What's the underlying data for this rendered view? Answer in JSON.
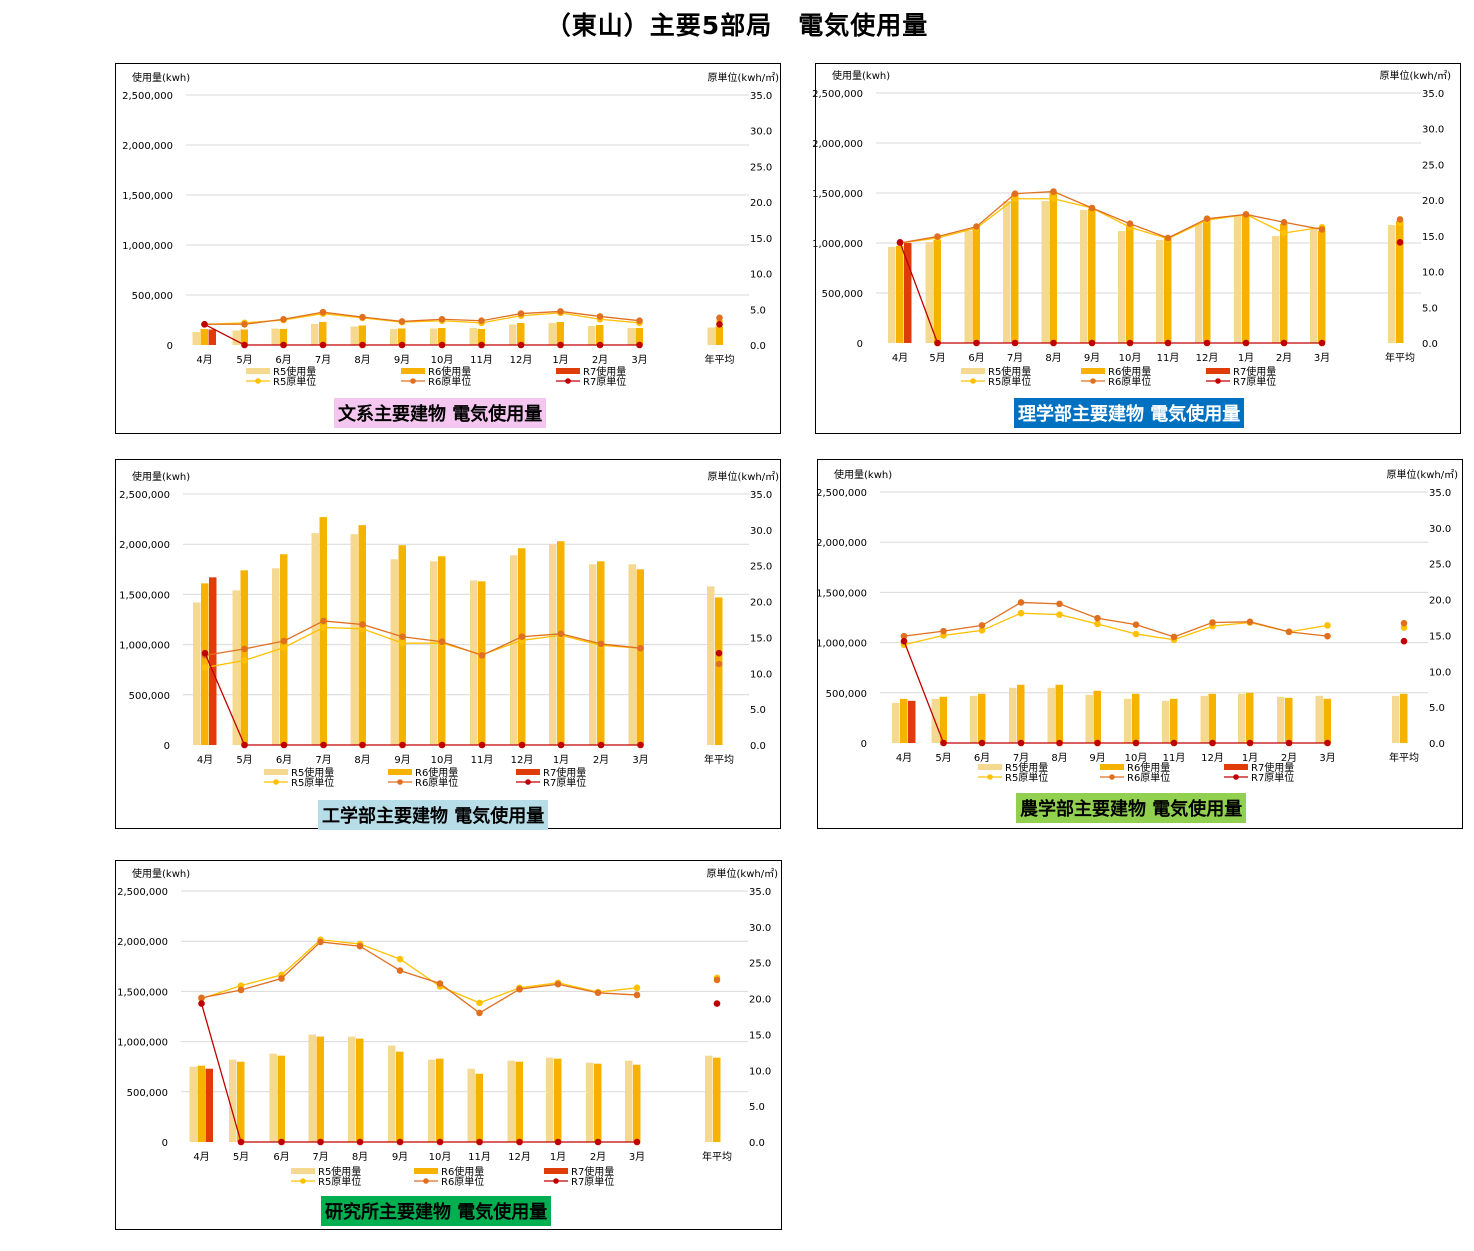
{
  "page_title": "（東山）主要5部局　電気使用量",
  "colors": {
    "r5_bar": "#F5D990",
    "r6_bar": "#F5B300",
    "r7_bar": "#E03C0A",
    "r5_line": "#FFC000",
    "r6_line": "#E07020",
    "r7_line": "#C00000",
    "grid": "#D9D9D9"
  },
  "chart_data": [
    {
      "type": "bar",
      "title": "文系主要建物  電気使用量",
      "caption_bg": "#F4C6F0",
      "caption_color": "#000000",
      "ylabel": "使用量(kwh)",
      "y2label": "原単位(kwh/㎡)",
      "categories": [
        "4月",
        "5月",
        "6月",
        "7月",
        "8月",
        "9月",
        "10月",
        "11月",
        "12月",
        "1月",
        "2月",
        "3月",
        "年平均"
      ],
      "yticks": [
        "0",
        "500,000",
        "1,000,000",
        "1,500,000",
        "2,000,000",
        "2,500,000"
      ],
      "y2ticks": [
        "0.0",
        "5.0",
        "10.0",
        "15.0",
        "20.0",
        "25.0",
        "30.0",
        "35.0"
      ],
      "ylim": [
        0,
        2500000
      ],
      "y2lim": [
        0,
        35
      ],
      "grid": true,
      "series": [
        {
          "name": "R5使用量",
          "kind": "bar",
          "values": [
            130000,
            145000,
            165000,
            210000,
            185000,
            160000,
            165000,
            170000,
            205000,
            220000,
            190000,
            170000,
            175000
          ]
        },
        {
          "name": "R6使用量",
          "kind": "bar",
          "values": [
            160000,
            155000,
            160000,
            230000,
            195000,
            165000,
            170000,
            160000,
            220000,
            230000,
            200000,
            170000,
            185000
          ]
        },
        {
          "name": "R7使用量",
          "kind": "bar",
          "values": [
            155000,
            null,
            null,
            null,
            null,
            null,
            null,
            null,
            null,
            null,
            null,
            null,
            null
          ]
        },
        {
          "name": "R5原単位",
          "kind": "line",
          "values": [
            2.9,
            3.1,
            3.5,
            4.4,
            3.8,
            3.2,
            3.4,
            3.1,
            4.1,
            4.5,
            3.6,
            3.1,
            3.3
          ]
        },
        {
          "name": "R6原単位",
          "kind": "line",
          "values": [
            2.9,
            2.9,
            3.6,
            4.6,
            3.9,
            3.3,
            3.6,
            3.4,
            4.4,
            4.7,
            4.0,
            3.4,
            3.8
          ]
        },
        {
          "name": "R7原単位",
          "kind": "line",
          "values": [
            2.9,
            0,
            0,
            0,
            0,
            0,
            0,
            0,
            0,
            0,
            0,
            0,
            2.9
          ]
        }
      ]
    },
    {
      "type": "bar",
      "title": "理学部主要建物  電気使用量",
      "caption_bg": "#0070C0",
      "caption_color": "#FFFFFF",
      "ylabel": "使用量(kwh)",
      "y2label": "原単位(kwh/㎡)",
      "categories": [
        "4月",
        "5月",
        "6月",
        "7月",
        "8月",
        "9月",
        "10月",
        "11月",
        "12月",
        "1月",
        "2月",
        "3月",
        "年平均"
      ],
      "yticks": [
        "0",
        "500,000",
        "1,000,000",
        "1,500,000",
        "2,000,000",
        "2,500,000"
      ],
      "y2ticks": [
        "0.0",
        "5.0",
        "10.0",
        "15.0",
        "20.0",
        "25.0",
        "30.0",
        "35.0"
      ],
      "ylim": [
        0,
        2500000
      ],
      "y2lim": [
        0,
        35
      ],
      "grid": true,
      "series": [
        {
          "name": "R5使用量",
          "kind": "bar",
          "values": [
            960000,
            1010000,
            1120000,
            1420000,
            1420000,
            1330000,
            1120000,
            1030000,
            1190000,
            1270000,
            1070000,
            1140000,
            1180000
          ]
        },
        {
          "name": "R6使用量",
          "kind": "bar",
          "values": [
            970000,
            1030000,
            1150000,
            1490000,
            1510000,
            1340000,
            1180000,
            1050000,
            1230000,
            1280000,
            1190000,
            1120000,
            1220000
          ]
        },
        {
          "name": "R7使用量",
          "kind": "bar",
          "values": [
            1000000,
            null,
            null,
            null,
            null,
            null,
            null,
            null,
            null,
            null,
            null,
            null,
            null
          ]
        },
        {
          "name": "R5原単位",
          "kind": "line",
          "values": [
            14.0,
            14.7,
            16.1,
            20.2,
            20.2,
            18.9,
            16.2,
            14.6,
            17.2,
            18.0,
            15.4,
            16.2,
            16.8
          ]
        },
        {
          "name": "R6原単位",
          "kind": "line",
          "values": [
            14.0,
            14.9,
            16.3,
            20.9,
            21.2,
            18.9,
            16.7,
            14.7,
            17.4,
            18.0,
            16.9,
            15.9,
            17.3
          ]
        },
        {
          "name": "R7原単位",
          "kind": "line",
          "values": [
            14.1,
            0,
            0,
            0,
            0,
            0,
            0,
            0,
            0,
            0,
            0,
            0,
            14.1
          ]
        }
      ]
    },
    {
      "type": "bar",
      "title": "工学部主要建物  電気使用量",
      "caption_bg": "#B7DEE8",
      "caption_color": "#000000",
      "ylabel": "使用量(kwh)",
      "y2label": "原単位(kwh/㎡)",
      "categories": [
        "4月",
        "5月",
        "6月",
        "7月",
        "8月",
        "9月",
        "10月",
        "11月",
        "12月",
        "1月",
        "2月",
        "3月",
        "年平均"
      ],
      "yticks": [
        "0",
        "500,000",
        "1,000,000",
        "1,500,000",
        "2,000,000",
        "2,500,000"
      ],
      "y2ticks": [
        "0.0",
        "5.0",
        "10.0",
        "15.0",
        "20.0",
        "25.0",
        "30.0",
        "35.0"
      ],
      "ylim": [
        0,
        2500000
      ],
      "y2lim": [
        0,
        35
      ],
      "grid": true,
      "series": [
        {
          "name": "R5使用量",
          "kind": "bar",
          "values": [
            1420000,
            1540000,
            1760000,
            2110000,
            2100000,
            1850000,
            1830000,
            1640000,
            1890000,
            2000000,
            1800000,
            1800000,
            1580000
          ]
        },
        {
          "name": "R6使用量",
          "kind": "bar",
          "values": [
            1610000,
            1740000,
            1900000,
            2270000,
            2190000,
            1990000,
            1880000,
            1630000,
            1960000,
            2030000,
            1830000,
            1750000,
            1470000
          ]
        },
        {
          "name": "R7使用量",
          "kind": "bar",
          "values": [
            1670000,
            null,
            null,
            null,
            null,
            null,
            null,
            null,
            null,
            null,
            null,
            null,
            null
          ]
        },
        {
          "name": "R5原単位",
          "kind": "line",
          "values": [
            10.8,
            11.8,
            13.6,
            16.4,
            16.2,
            14.2,
            14.2,
            12.6,
            14.6,
            15.3,
            13.9,
            13.5,
            11.5
          ]
        },
        {
          "name": "R6原単位",
          "kind": "line",
          "values": [
            12.5,
            13.4,
            14.5,
            17.3,
            16.8,
            15.1,
            14.4,
            12.5,
            15.1,
            15.5,
            14.1,
            13.5,
            11.3
          ]
        },
        {
          "name": "R7原単位",
          "kind": "line",
          "values": [
            12.8,
            0,
            0,
            0,
            0,
            0,
            0,
            0,
            0,
            0,
            0,
            0,
            12.8
          ]
        }
      ]
    },
    {
      "type": "bar",
      "title": "農学部主要建物  電気使用量",
      "caption_bg": "#92D050",
      "caption_color": "#000000",
      "ylabel": "使用量(kwh)",
      "y2label": "原単位(kwh/㎡)",
      "categories": [
        "4月",
        "5月",
        "6月",
        "7月",
        "8月",
        "9月",
        "10月",
        "11月",
        "12月",
        "1月",
        "2月",
        "3月",
        "年平均"
      ],
      "yticks": [
        "0",
        "500,000",
        "1,000,000",
        "1,500,000",
        "2,000,000",
        "2,500,000"
      ],
      "y2ticks": [
        "0.0",
        "5.0",
        "10.0",
        "15.0",
        "20.0",
        "25.0",
        "30.0",
        "35.0"
      ],
      "ylim": [
        0,
        2500000
      ],
      "y2lim": [
        0,
        35
      ],
      "grid": true,
      "series": [
        {
          "name": "R5使用量",
          "kind": "bar",
          "values": [
            400000,
            440000,
            470000,
            550000,
            550000,
            480000,
            440000,
            420000,
            470000,
            490000,
            460000,
            470000,
            470000
          ]
        },
        {
          "name": "R6使用量",
          "kind": "bar",
          "values": [
            440000,
            460000,
            490000,
            580000,
            580000,
            520000,
            490000,
            440000,
            490000,
            500000,
            450000,
            440000,
            490000
          ]
        },
        {
          "name": "R7使用量",
          "kind": "bar",
          "values": [
            420000,
            null,
            null,
            null,
            null,
            null,
            null,
            null,
            null,
            null,
            null,
            null,
            null
          ]
        },
        {
          "name": "R5原単位",
          "kind": "line",
          "values": [
            13.7,
            15.0,
            15.7,
            18.1,
            17.9,
            16.6,
            15.2,
            14.4,
            16.3,
            16.8,
            15.5,
            16.4,
            16.1
          ]
        },
        {
          "name": "R6原単位",
          "kind": "line",
          "values": [
            14.9,
            15.6,
            16.4,
            19.6,
            19.4,
            17.4,
            16.5,
            14.8,
            16.8,
            16.9,
            15.5,
            14.9,
            16.7
          ]
        },
        {
          "name": "R7原単位",
          "kind": "line",
          "values": [
            14.2,
            0,
            0,
            0,
            0,
            0,
            0,
            0,
            0,
            0,
            0,
            0,
            14.2
          ]
        }
      ]
    },
    {
      "type": "bar",
      "title": "研究所主要建物  電気使用量",
      "caption_bg": "#00B050",
      "caption_color": "#000000",
      "ylabel": "使用量(kwh)",
      "y2label": "原単位(kwh/㎡)",
      "categories": [
        "4月",
        "5月",
        "6月",
        "7月",
        "8月",
        "9月",
        "10月",
        "11月",
        "12月",
        "1月",
        "2月",
        "3月",
        "年平均"
      ],
      "yticks": [
        "0",
        "500,000",
        "1,000,000",
        "1,500,000",
        "2,000,000",
        "2,500,000"
      ],
      "y2ticks": [
        "0.0",
        "5.0",
        "10.0",
        "15.0",
        "20.0",
        "25.0",
        "30.0",
        "35.0"
      ],
      "ylim": [
        0,
        2500000
      ],
      "y2lim": [
        0,
        35
      ],
      "grid": true,
      "series": [
        {
          "name": "R5使用量",
          "kind": "bar",
          "values": [
            750000,
            820000,
            880000,
            1070000,
            1050000,
            960000,
            820000,
            730000,
            810000,
            840000,
            790000,
            810000,
            860000
          ]
        },
        {
          "name": "R6使用量",
          "kind": "bar",
          "values": [
            760000,
            800000,
            860000,
            1050000,
            1030000,
            900000,
            830000,
            680000,
            800000,
            830000,
            780000,
            770000,
            840000
          ]
        },
        {
          "name": "R7使用量",
          "kind": "bar",
          "values": [
            730000,
            null,
            null,
            null,
            null,
            null,
            null,
            null,
            null,
            null,
            null,
            null,
            null
          ]
        },
        {
          "name": "R5原単位",
          "kind": "line",
          "values": [
            20.0,
            21.8,
            23.3,
            28.2,
            27.6,
            25.5,
            21.7,
            19.4,
            21.5,
            22.2,
            20.9,
            21.5,
            22.9
          ]
        },
        {
          "name": "R6原単位",
          "kind": "line",
          "values": [
            20.1,
            21.2,
            22.8,
            27.9,
            27.3,
            23.9,
            22.1,
            18.0,
            21.3,
            22.0,
            20.8,
            20.5,
            22.6
          ]
        },
        {
          "name": "R7原単位",
          "kind": "line",
          "values": [
            19.3,
            0,
            0,
            0,
            0,
            0,
            0,
            0,
            0,
            0,
            0,
            0,
            19.3
          ]
        }
      ]
    }
  ]
}
